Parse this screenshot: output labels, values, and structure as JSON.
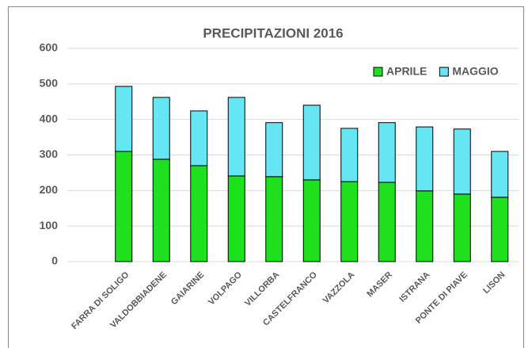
{
  "chart_data": {
    "type": "bar",
    "stacked": true,
    "title": "PRECIPITAZIONI 2016",
    "categories": [
      null,
      "FARRA DI SOLIGO",
      "VALDOBBIADENE",
      "GAIARINE",
      "VOLPAGO",
      "VILLORBA",
      "CASTELFRANCO",
      "VAZZOLA",
      "MASER",
      "ISTRANA",
      "PONTE DI PIAVE",
      "LISON"
    ],
    "series": [
      {
        "name": "APRILE",
        "color": "#1ee01e",
        "values": [
          null,
          310,
          288,
          270,
          241,
          239,
          230,
          225,
          223,
          199,
          190,
          181
        ]
      },
      {
        "name": "MAGGIO",
        "color": "#66e6f2",
        "values": [
          null,
          183,
          174,
          154,
          221,
          152,
          210,
          150,
          168,
          180,
          183,
          129
        ]
      }
    ],
    "ylim": [
      0,
      600
    ],
    "yticks": [
      0,
      100,
      200,
      300,
      400,
      500,
      600
    ],
    "grid": true,
    "legend": "top-right"
  }
}
